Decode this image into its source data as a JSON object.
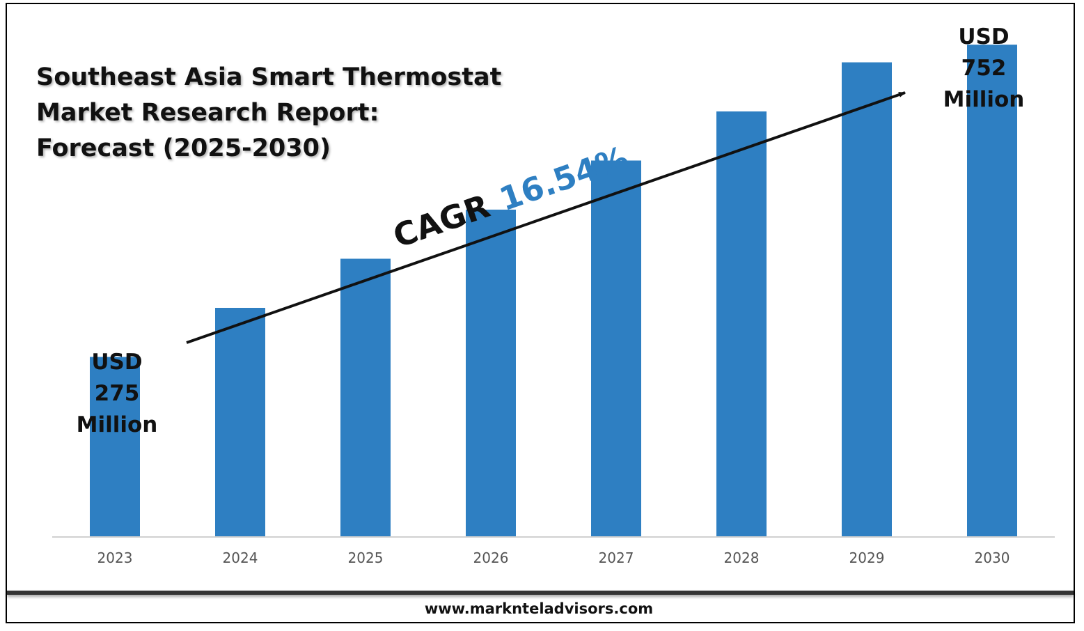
{
  "chart_data": {
    "type": "bar",
    "title": [
      "Southeast Asia Smart Thermostat",
      "Market Research Report:",
      "Forecast (2025-2030)"
    ],
    "categories": [
      "2023",
      "2024",
      "2025",
      "2026",
      "2027",
      "2028",
      "2029",
      "2030"
    ],
    "values": [
      275,
      350,
      425,
      500,
      575,
      650,
      725,
      752
    ],
    "ylim": [
      0,
      800
    ],
    "color": "#2e7fc2",
    "grid": false,
    "annotations": {
      "start": [
        "USD",
        "275",
        "Million"
      ],
      "end": [
        "USD",
        "752",
        "Million"
      ],
      "cagr_label": "CAGR",
      "cagr_value": "16.54%"
    }
  },
  "footer": {
    "url": "www.marknteladvisors.com"
  }
}
